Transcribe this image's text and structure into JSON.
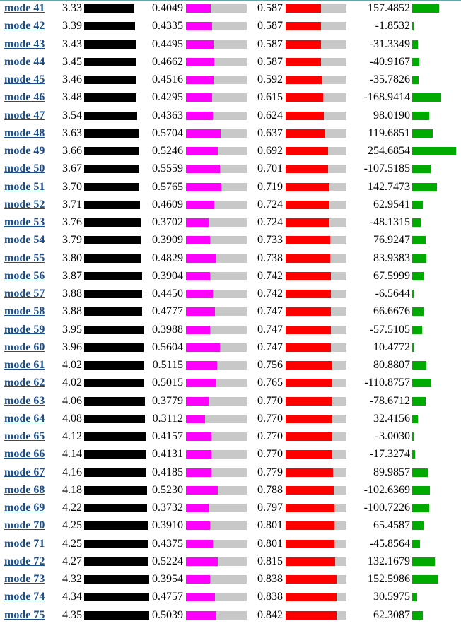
{
  "colors": {
    "link": "#1c4f8a",
    "black_bar": "#000000",
    "magenta_bar": "#ff00ff",
    "red_bar": "#ff0000",
    "green_bar": "#00aa00",
    "bar_track": "#c8c8c8"
  },
  "rows": [
    {
      "label": "mode 41",
      "freq": "3.33",
      "ipr": "0.4049",
      "part": "0.587",
      "value": "157.4852"
    },
    {
      "label": "mode 42",
      "freq": "3.39",
      "ipr": "0.4335",
      "part": "0.587",
      "value": "-1.8532"
    },
    {
      "label": "mode 43",
      "freq": "3.43",
      "ipr": "0.4495",
      "part": "0.587",
      "value": "-31.3349"
    },
    {
      "label": "mode 44",
      "freq": "3.45",
      "ipr": "0.4662",
      "part": "0.587",
      "value": "-40.9167"
    },
    {
      "label": "mode 45",
      "freq": "3.46",
      "ipr": "0.4516",
      "part": "0.592",
      "value": "-35.7826"
    },
    {
      "label": "mode 46",
      "freq": "3.48",
      "ipr": "0.4295",
      "part": "0.615",
      "value": "-168.9414"
    },
    {
      "label": "mode 47",
      "freq": "3.54",
      "ipr": "0.4363",
      "part": "0.624",
      "value": "98.0190"
    },
    {
      "label": "mode 48",
      "freq": "3.63",
      "ipr": "0.5704",
      "part": "0.637",
      "value": "119.6851"
    },
    {
      "label": "mode 49",
      "freq": "3.66",
      "ipr": "0.5246",
      "part": "0.692",
      "value": "254.6854"
    },
    {
      "label": "mode 50",
      "freq": "3.67",
      "ipr": "0.5559",
      "part": "0.701",
      "value": "-107.5185"
    },
    {
      "label": "mode 51",
      "freq": "3.70",
      "ipr": "0.5765",
      "part": "0.719",
      "value": "142.7473"
    },
    {
      "label": "mode 52",
      "freq": "3.71",
      "ipr": "0.4609",
      "part": "0.724",
      "value": "62.9541"
    },
    {
      "label": "mode 53",
      "freq": "3.76",
      "ipr": "0.3702",
      "part": "0.724",
      "value": "-48.1315"
    },
    {
      "label": "mode 54",
      "freq": "3.79",
      "ipr": "0.3909",
      "part": "0.733",
      "value": "76.9247"
    },
    {
      "label": "mode 55",
      "freq": "3.80",
      "ipr": "0.4829",
      "part": "0.738",
      "value": "83.9383"
    },
    {
      "label": "mode 56",
      "freq": "3.87",
      "ipr": "0.3904",
      "part": "0.742",
      "value": "67.5999"
    },
    {
      "label": "mode 57",
      "freq": "3.88",
      "ipr": "0.4450",
      "part": "0.742",
      "value": "-6.5644"
    },
    {
      "label": "mode 58",
      "freq": "3.88",
      "ipr": "0.4777",
      "part": "0.747",
      "value": "66.6676"
    },
    {
      "label": "mode 59",
      "freq": "3.95",
      "ipr": "0.3988",
      "part": "0.747",
      "value": "-57.5105"
    },
    {
      "label": "mode 60",
      "freq": "3.96",
      "ipr": "0.5604",
      "part": "0.747",
      "value": "10.4772"
    },
    {
      "label": "mode 61",
      "freq": "4.02",
      "ipr": "0.5115",
      "part": "0.756",
      "value": "80.8807"
    },
    {
      "label": "mode 62",
      "freq": "4.02",
      "ipr": "0.5015",
      "part": "0.765",
      "value": "-110.8757"
    },
    {
      "label": "mode 63",
      "freq": "4.06",
      "ipr": "0.3779",
      "part": "0.770",
      "value": "-78.6712"
    },
    {
      "label": "mode 64",
      "freq": "4.08",
      "ipr": "0.3112",
      "part": "0.770",
      "value": "32.4156"
    },
    {
      "label": "mode 65",
      "freq": "4.12",
      "ipr": "0.4157",
      "part": "0.770",
      "value": "-3.0030"
    },
    {
      "label": "mode 66",
      "freq": "4.14",
      "ipr": "0.4131",
      "part": "0.770",
      "value": "-17.3274"
    },
    {
      "label": "mode 67",
      "freq": "4.16",
      "ipr": "0.4185",
      "part": "0.779",
      "value": "89.9857"
    },
    {
      "label": "mode 68",
      "freq": "4.18",
      "ipr": "0.5230",
      "part": "0.788",
      "value": "-102.6369"
    },
    {
      "label": "mode 69",
      "freq": "4.22",
      "ipr": "0.3732",
      "part": "0.797",
      "value": "-100.7226"
    },
    {
      "label": "mode 70",
      "freq": "4.25",
      "ipr": "0.3910",
      "part": "0.801",
      "value": "65.4587"
    },
    {
      "label": "mode 71",
      "freq": "4.25",
      "ipr": "0.4375",
      "part": "0.801",
      "value": "-45.8564"
    },
    {
      "label": "mode 72",
      "freq": "4.27",
      "ipr": "0.5224",
      "part": "0.815",
      "value": "132.1679"
    },
    {
      "label": "mode 73",
      "freq": "4.32",
      "ipr": "0.3954",
      "part": "0.838",
      "value": "152.5986"
    },
    {
      "label": "mode 74",
      "freq": "4.34",
      "ipr": "0.4757",
      "part": "0.838",
      "value": "30.5975"
    },
    {
      "label": "mode 75",
      "freq": "4.35",
      "ipr": "0.5039",
      "part": "0.842",
      "value": "62.3087"
    }
  ]
}
